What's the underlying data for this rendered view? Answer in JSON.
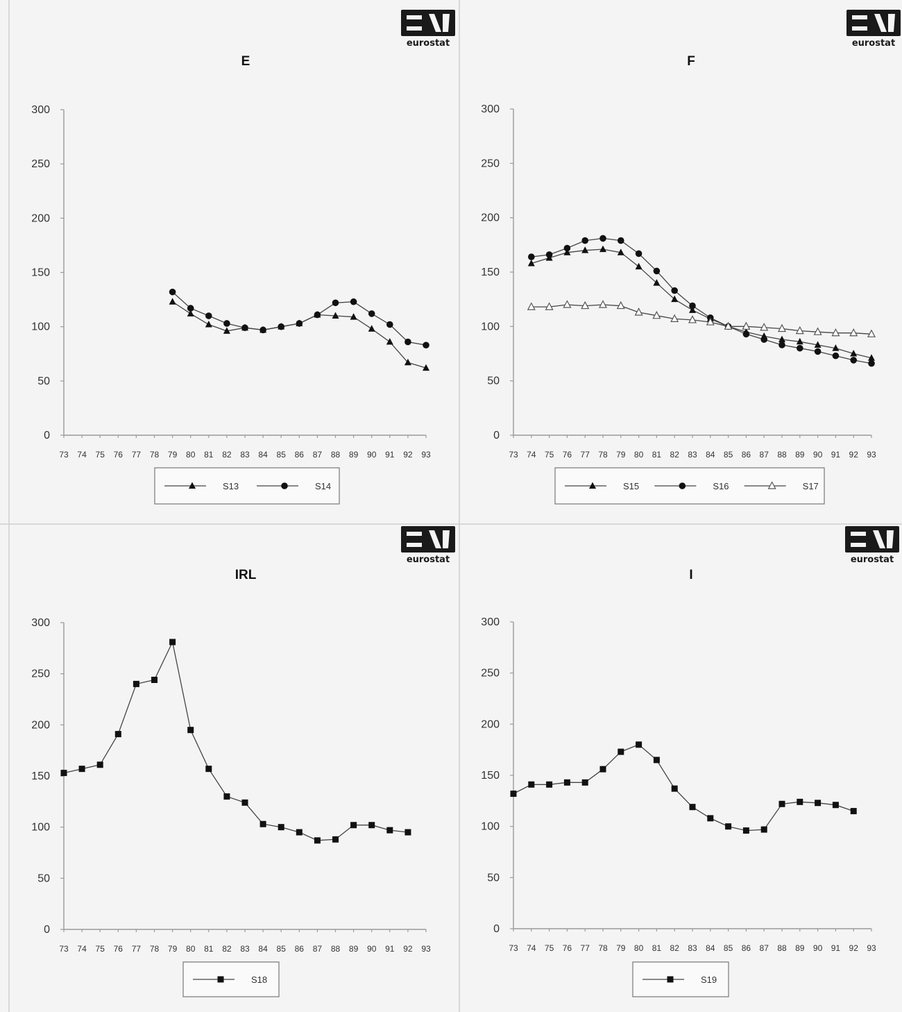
{
  "logo_text": "eurostat",
  "chart_data": [
    {
      "type": "line",
      "title": "E",
      "ylim": [
        0,
        300
      ],
      "yticks": [
        0,
        50,
        100,
        150,
        200,
        250,
        300
      ],
      "categories": [
        "73",
        "74",
        "75",
        "76",
        "77",
        "78",
        "79",
        "80",
        "81",
        "82",
        "83",
        "84",
        "85",
        "86",
        "87",
        "88",
        "89",
        "90",
        "91",
        "92",
        "93"
      ],
      "legend_position": "bottom",
      "series": [
        {
          "name": "S13",
          "marker": "triangle",
          "values": [
            null,
            null,
            null,
            null,
            null,
            null,
            123,
            112,
            102,
            96,
            99,
            97,
            100,
            103,
            111,
            110,
            109,
            98,
            86,
            67,
            62
          ]
        },
        {
          "name": "S14",
          "marker": "circle",
          "values": [
            null,
            null,
            null,
            null,
            null,
            null,
            132,
            117,
            110,
            103,
            99,
            97,
            100,
            103,
            111,
            122,
            123,
            112,
            102,
            86,
            83
          ]
        }
      ]
    },
    {
      "type": "line",
      "title": "F",
      "ylim": [
        0,
        300
      ],
      "yticks": [
        0,
        50,
        100,
        150,
        200,
        250,
        300
      ],
      "categories": [
        "73",
        "74",
        "75",
        "76",
        "77",
        "78",
        "79",
        "80",
        "81",
        "82",
        "83",
        "84",
        "85",
        "86",
        "87",
        "88",
        "89",
        "90",
        "91",
        "92",
        "93"
      ],
      "legend_position": "bottom",
      "series": [
        {
          "name": "S15",
          "marker": "triangle",
          "values": [
            null,
            158,
            163,
            168,
            170,
            171,
            168,
            155,
            140,
            125,
            115,
            107,
            100,
            95,
            91,
            88,
            86,
            83,
            80,
            75,
            71
          ]
        },
        {
          "name": "S16",
          "marker": "circle",
          "values": [
            null,
            164,
            166,
            172,
            179,
            181,
            179,
            167,
            151,
            133,
            119,
            108,
            100,
            93,
            88,
            83,
            80,
            77,
            73,
            69,
            66
          ]
        },
        {
          "name": "S17",
          "marker": "open-triangle",
          "values": [
            null,
            118,
            118,
            120,
            119,
            120,
            119,
            113,
            110,
            107,
            106,
            104,
            100,
            100,
            99,
            98,
            96,
            95,
            94,
            94,
            93
          ]
        }
      ]
    },
    {
      "type": "line",
      "title": "IRL",
      "ylim": [
        0,
        300
      ],
      "yticks": [
        0,
        50,
        100,
        150,
        200,
        250,
        300
      ],
      "categories": [
        "73",
        "74",
        "75",
        "76",
        "77",
        "78",
        "79",
        "80",
        "81",
        "82",
        "83",
        "84",
        "85",
        "86",
        "87",
        "88",
        "89",
        "90",
        "91",
        "92",
        "93"
      ],
      "legend_position": "bottom",
      "series": [
        {
          "name": "S18",
          "marker": "square",
          "values": [
            153,
            157,
            161,
            191,
            240,
            244,
            281,
            195,
            157,
            130,
            124,
            103,
            100,
            95,
            87,
            88,
            102,
            102,
            97,
            95,
            null
          ]
        }
      ]
    },
    {
      "type": "line",
      "title": "I",
      "ylim": [
        0,
        300
      ],
      "yticks": [
        0,
        50,
        100,
        150,
        200,
        250,
        300
      ],
      "categories": [
        "73",
        "74",
        "75",
        "76",
        "77",
        "78",
        "79",
        "80",
        "81",
        "82",
        "83",
        "84",
        "85",
        "86",
        "87",
        "88",
        "89",
        "90",
        "91",
        "92",
        "93"
      ],
      "legend_position": "bottom",
      "series": [
        {
          "name": "S19",
          "marker": "square",
          "values": [
            132,
            141,
            141,
            143,
            143,
            156,
            173,
            180,
            165,
            137,
            119,
            108,
            100,
            96,
            97,
            122,
            124,
            123,
            121,
            115,
            null
          ]
        }
      ]
    }
  ]
}
